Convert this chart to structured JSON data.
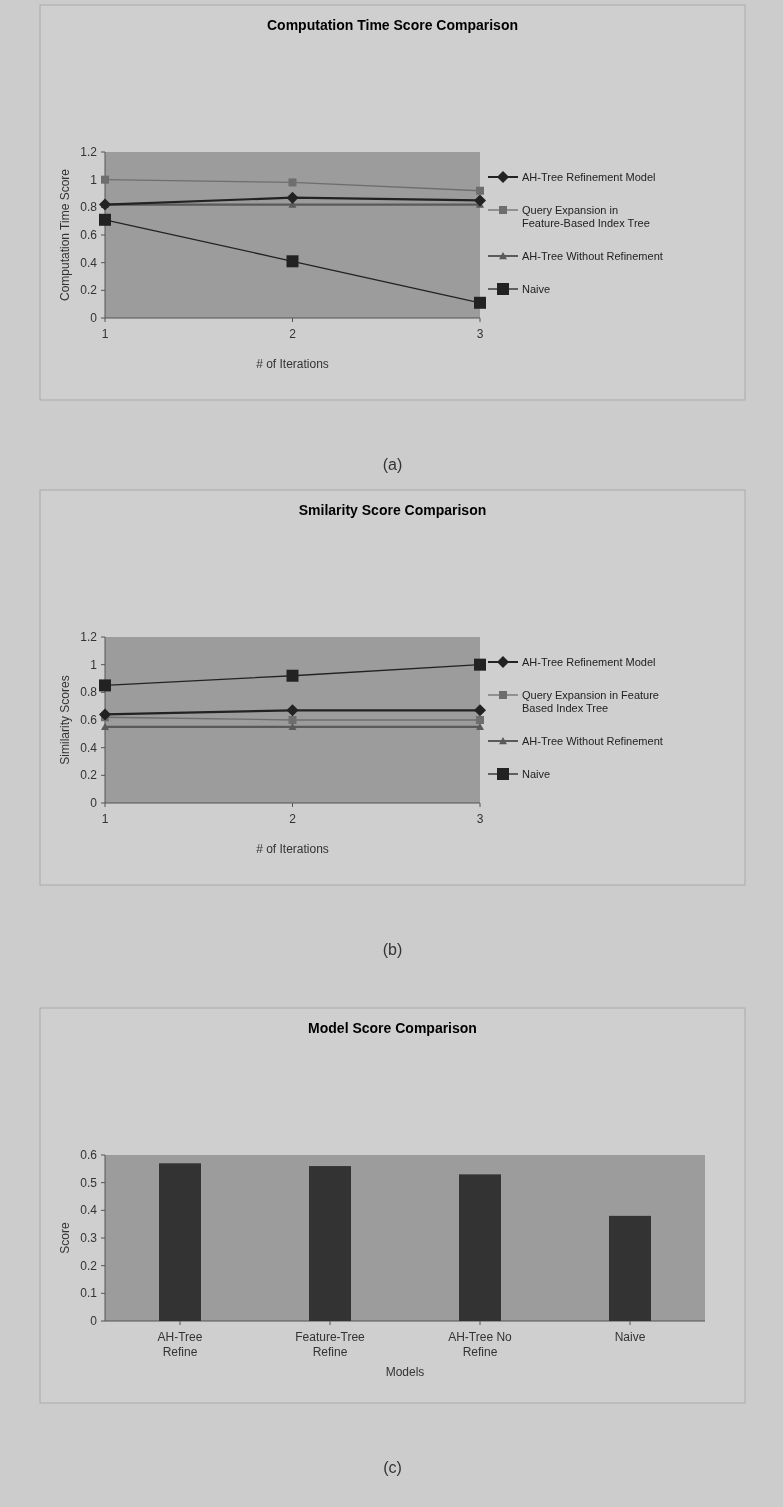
{
  "chart_data": [
    {
      "type": "line",
      "title": "Computation Time Score Comparison",
      "xlabel": "# of Iterations",
      "ylabel": "Computation Time Score",
      "categories": [
        "1",
        "2",
        "3"
      ],
      "ylim": [
        0,
        1.2
      ],
      "yticks": [
        0,
        0.2,
        0.4,
        0.6,
        0.8,
        1,
        1.2
      ],
      "legend": "right",
      "grid": false,
      "annotations": [
        "(a)"
      ],
      "series": [
        {
          "name": "AH-Tree Refinement Model",
          "color": "#222222",
          "marker": "diamond",
          "values": [
            0.82,
            0.87,
            0.85
          ]
        },
        {
          "name": "Query Expansion in Feature-Based Index Tree",
          "color": "#6e6e6e",
          "marker": "square",
          "values": [
            1,
            0.98,
            0.92
          ]
        },
        {
          "name": "AH-Tree Without Refinement",
          "color": "#5a5a5a",
          "marker": "triangle",
          "values": [
            0.82,
            0.82,
            0.82
          ]
        },
        {
          "name": "Naive",
          "color": "#222222",
          "marker": "square",
          "values": [
            0.71,
            0.41,
            0.11
          ]
        }
      ]
    },
    {
      "type": "line",
      "title": "Smilarity Score Comparison",
      "xlabel": "# of Iterations",
      "ylabel": "Similarity Scores",
      "categories": [
        "1",
        "2",
        "3"
      ],
      "ylim": [
        0,
        1.2
      ],
      "yticks": [
        0,
        0.2,
        0.4,
        0.6,
        0.8,
        1,
        1.2
      ],
      "legend": "right",
      "grid": false,
      "annotations": [
        "(b)"
      ],
      "series": [
        {
          "name": "AH-Tree Refinement Model",
          "color": "#222222",
          "marker": "diamond",
          "values": [
            0.64,
            0.67,
            0.67
          ]
        },
        {
          "name": "Query Expansion in Feature Based Index Tree",
          "color": "#6e6e6e",
          "marker": "square",
          "values": [
            0.62,
            0.6,
            0.6
          ]
        },
        {
          "name": "AH-Tree Without Refinement",
          "color": "#5a5a5a",
          "marker": "triangle",
          "values": [
            0.55,
            0.55,
            0.55
          ]
        },
        {
          "name": "Naive",
          "color": "#222222",
          "marker": "square",
          "values": [
            0.85,
            0.92,
            1
          ]
        }
      ]
    },
    {
      "type": "bar",
      "title": "Model Score Comparison",
      "xlabel": "Models",
      "ylabel": "Score",
      "categories": [
        "AH-Tree Refine",
        "Feature-Tree Refine",
        "AH-Tree No Refine",
        "Naive"
      ],
      "ylim": [
        0,
        0.6
      ],
      "yticks": [
        0,
        0.1,
        0.2,
        0.3,
        0.4,
        0.5,
        0.6
      ],
      "legend": false,
      "grid": false,
      "annotations": [
        "(c)"
      ],
      "series": [
        {
          "color": "#333333",
          "values": [
            0.57,
            0.56,
            0.53,
            0.38
          ]
        }
      ]
    }
  ]
}
